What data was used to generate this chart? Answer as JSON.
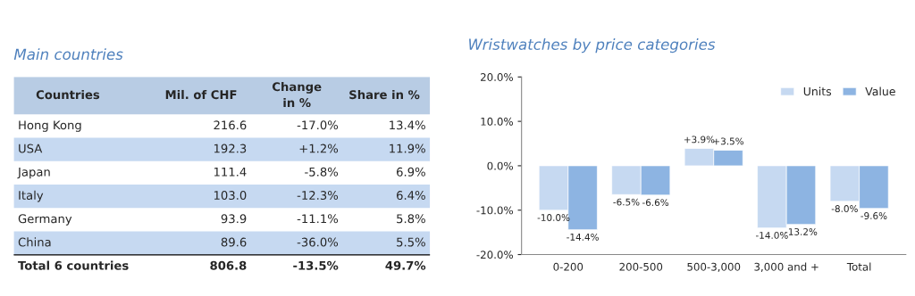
{
  "chart_data": [
    {
      "type": "other",
      "title": "Main countries",
      "annotations": [
        "Countries",
        "Mil. of CHF",
        "Change\nin %",
        "Share in %",
        "Hong Kong",
        "216.6",
        "-17.0%",
        "13.4%",
        "USA",
        "192.3",
        "+1.2%",
        "11.9%",
        "Japan",
        "111.4",
        "-5.8%",
        "6.9%",
        "Italy",
        "103.0",
        "-12.3%",
        "6.4%",
        "Germany",
        "93.9",
        "-11.1%",
        "5.8%",
        "China",
        "89.6",
        "-36.0%",
        "5.5%",
        "Total 6 countries",
        "806.8",
        "-13.5%",
        "49.7%"
      ]
    },
    {
      "type": "bar",
      "title": "Wristwatches by price categories",
      "categories": [
        "0-200",
        "200-500",
        "500-3,000",
        "3,000 and +",
        "Total"
      ],
      "series": [
        {
          "name": "Units",
          "color": "#c6d9f1",
          "values": [
            -10.0,
            -6.5,
            3.9,
            -14.0,
            -8.0
          ],
          "value_labels": [
            "-10.0%",
            "-6.5%",
            "+3.9%",
            "-14.0%",
            "-8.0%"
          ]
        },
        {
          "name": "Value",
          "color": "#8db4e2",
          "values": [
            -14.4,
            -6.6,
            3.5,
            -13.2,
            -9.6
          ],
          "value_labels": [
            "-14.4%",
            "-6.6%",
            "+3.5%",
            "-13.2%",
            "-9.6%"
          ]
        }
      ],
      "ylim": [
        -20,
        20
      ],
      "yticks": [
        {
          "value": -20,
          "label": "-20.0%"
        },
        {
          "value": -10,
          "label": "-10.0%"
        },
        {
          "value": 0,
          "label": "0.0%"
        },
        {
          "value": 10,
          "label": "10.0%"
        },
        {
          "value": 20,
          "label": "20.0%"
        }
      ],
      "grid": false,
      "legend": "top right"
    }
  ]
}
